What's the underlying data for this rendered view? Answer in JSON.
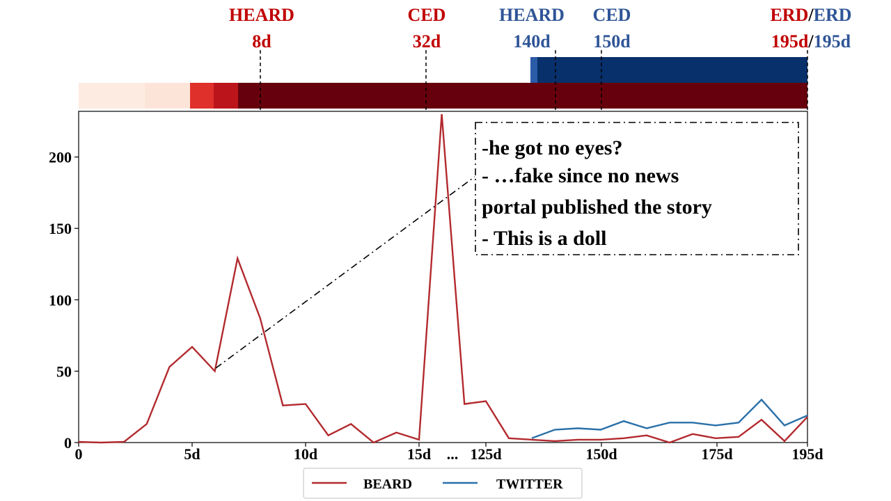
{
  "colors": {
    "beard": "#b22a2e",
    "twitter": "#2a70a8",
    "red_label": "#c00000",
    "blue_label": "#2f5597",
    "red_bar": [
      "#fdebe2",
      "#fde4d9",
      "#e0302b",
      "#bb151b",
      "#67000d"
    ],
    "blue_bar": [
      "#2b5ca8",
      "#08306b"
    ]
  },
  "top_labels": [
    {
      "name": "heard-beard",
      "lines": [
        {
          "text": "HEARD",
          "color": "red"
        },
        {
          "text": "8d",
          "color": "red"
        }
      ]
    },
    {
      "name": "ced-beard",
      "lines": [
        {
          "text": "CED",
          "color": "red"
        },
        {
          "text": "32d",
          "color": "red"
        }
      ]
    },
    {
      "name": "heard-twitter",
      "lines": [
        {
          "text": "HEARD",
          "color": "blue"
        },
        {
          "text": "140d",
          "color": "blue"
        }
      ]
    },
    {
      "name": "ced-twitter",
      "lines": [
        {
          "text": "CED",
          "color": "blue"
        },
        {
          "text": "150d",
          "color": "blue"
        }
      ]
    },
    {
      "name": "erd-both",
      "lines": [
        [
          {
            "text": "ERD",
            "color": "red"
          },
          {
            "text": "/",
            "color": "black"
          },
          {
            "text": "ERD",
            "color": "blue"
          }
        ],
        [
          {
            "text": "195d",
            "color": "red"
          },
          {
            "text": "/",
            "color": "black"
          },
          {
            "text": "195d",
            "color": "blue"
          }
        ]
      ]
    }
  ],
  "annotation": {
    "lines": [
      "-he got no eyes?",
      "- …fake since no news",
      "portal published the story",
      "- This is a doll"
    ]
  },
  "legend": {
    "beard": "BEARD",
    "twitter": "TWITTER"
  },
  "chart_data": {
    "type": "line",
    "title": "",
    "xlabel": "",
    "ylabel": "",
    "ylim": [
      0,
      232
    ],
    "y_ticks": [
      "0",
      "50",
      "100",
      "150",
      "200"
    ],
    "y_tick_values": [
      0,
      50,
      100,
      150,
      200
    ],
    "x_ticks": [
      "0",
      "5d",
      "10d",
      "15d",
      "...",
      "125d",
      "150d",
      "175d",
      "195d"
    ],
    "x_broken_axis": true,
    "series": [
      {
        "name": "BEARD",
        "color": "beard",
        "points": [
          [
            "0",
            0.5
          ],
          [
            "1",
            0
          ],
          [
            "2",
            0.5
          ],
          [
            "3",
            13
          ],
          [
            "4",
            53
          ],
          [
            "5",
            67
          ],
          [
            "6",
            50
          ],
          [
            "7",
            129
          ],
          [
            "8",
            87
          ],
          [
            "9",
            26
          ],
          [
            "10",
            27
          ],
          [
            "11",
            5
          ],
          [
            "12",
            13
          ],
          [
            "13",
            0
          ],
          [
            "14",
            7
          ],
          [
            "15",
            2
          ],
          [
            "16",
            230
          ],
          [
            "17",
            27
          ],
          [
            "125",
            29
          ],
          [
            "130",
            3
          ],
          [
            "135",
            2
          ],
          [
            "140",
            1
          ],
          [
            "145",
            2
          ],
          [
            "150",
            2
          ],
          [
            "155",
            3
          ],
          [
            "160",
            5
          ],
          [
            "165",
            0
          ],
          [
            "170",
            6
          ],
          [
            "175",
            3
          ],
          [
            "180",
            4
          ],
          [
            "185",
            16
          ],
          [
            "190",
            1
          ],
          [
            "195",
            18
          ]
        ]
      },
      {
        "name": "TWITTER",
        "color": "twitter",
        "points": [
          [
            "135",
            3
          ],
          [
            "140",
            9
          ],
          [
            "145",
            10
          ],
          [
            "150",
            9
          ],
          [
            "155",
            15
          ],
          [
            "160",
            10
          ],
          [
            "165",
            14
          ],
          [
            "170",
            14
          ],
          [
            "175",
            12
          ],
          [
            "180",
            14
          ],
          [
            "185",
            30
          ],
          [
            "190",
            12
          ],
          [
            "195",
            19
          ]
        ]
      }
    ]
  }
}
